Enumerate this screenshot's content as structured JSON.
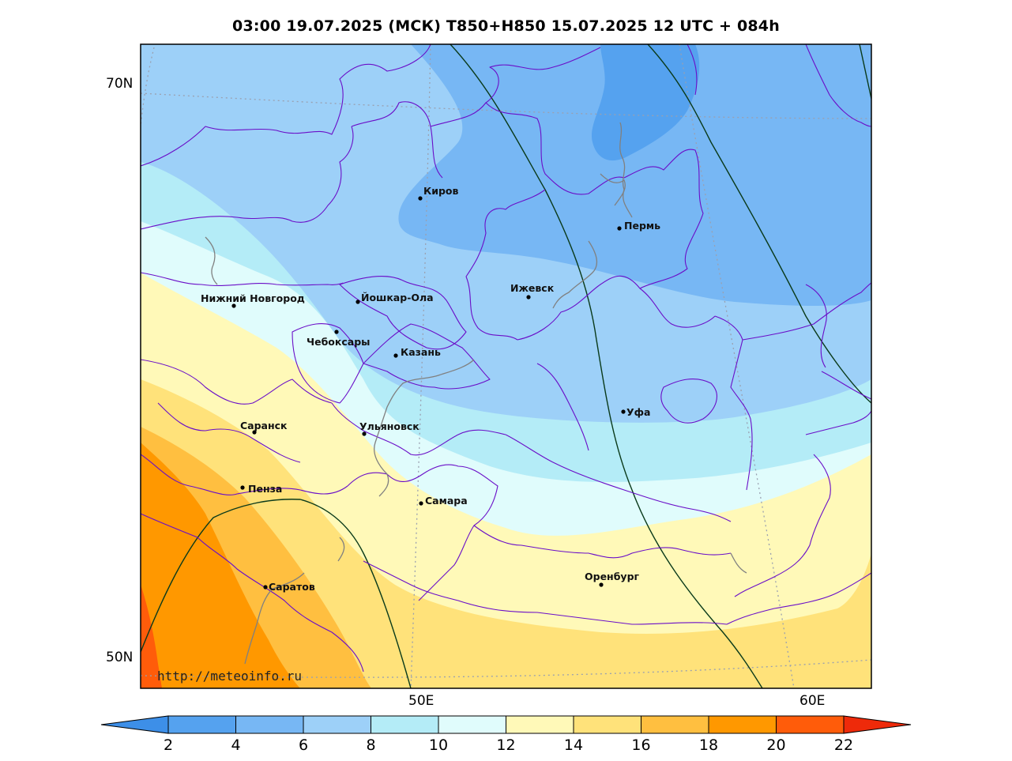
{
  "title": "03:00 19.07.2025 (МСК) T850+H850 15.07.2025 12 UTC + 084h",
  "axes": {
    "lat_labels": [
      "70N",
      "50N"
    ],
    "lon_labels": [
      "50E",
      "60E"
    ]
  },
  "cities": [
    {
      "name": "Киров"
    },
    {
      "name": "Пермь"
    },
    {
      "name": "Нижний Новгород"
    },
    {
      "name": "Йошкар-Ола"
    },
    {
      "name": "Ижевск"
    },
    {
      "name": "Чебоксары"
    },
    {
      "name": "Казань"
    },
    {
      "name": "Уфа"
    },
    {
      "name": "Саранск"
    },
    {
      "name": "Ульяновск"
    },
    {
      "name": "Пенза"
    },
    {
      "name": "Самара"
    },
    {
      "name": "Оренбург"
    },
    {
      "name": "Саратов"
    }
  ],
  "watermark": "http://meteoinfo.ru",
  "colorbar": {
    "ticks": [
      "2",
      "4",
      "6",
      "8",
      "10",
      "12",
      "14",
      "16",
      "18",
      "20",
      "22"
    ],
    "colors": [
      "#3d8fe8",
      "#55a2ef",
      "#77b7f4",
      "#9dd0f8",
      "#b4ecf7",
      "#e0fcfc",
      "#fff9b8",
      "#ffe27a",
      "#ffbf40",
      "#ff9800",
      "#ff5c0a",
      "#ee2a0a"
    ]
  },
  "map_colors": {
    "region_border": "#6a0ec8",
    "isohypse": "#0a3a1a",
    "river": "#808080",
    "graticule": "#9aa0b0"
  }
}
